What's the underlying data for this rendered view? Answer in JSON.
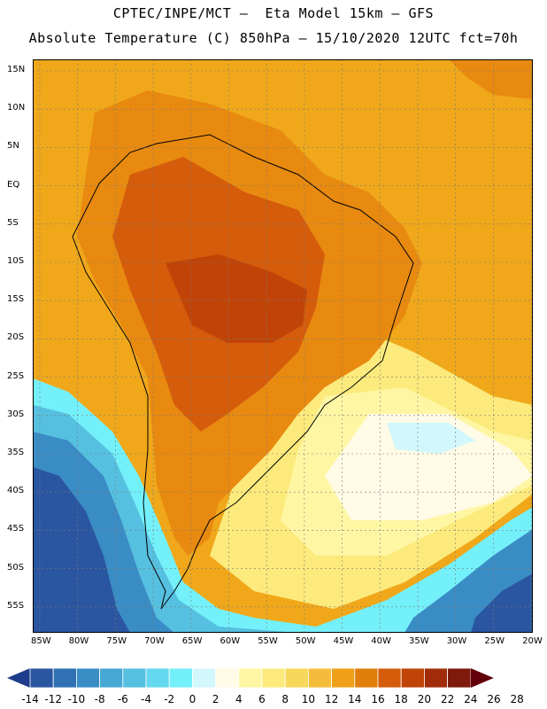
{
  "header": {
    "title_line1": "CPTEC/INPE/MCT –  Eta Model 15km – GFS",
    "title_line2": "Absolute Temperature (C) 850hPa – 15/10/2020 12UTC fct=70h"
  },
  "map": {
    "lat_labels": [
      "15N",
      "10N",
      "5N",
      "EQ",
      "5S",
      "10S",
      "15S",
      "20S",
      "25S",
      "30S",
      "35S",
      "40S",
      "45S",
      "50S",
      "55S"
    ],
    "lon_labels": [
      "85W",
      "80W",
      "75W",
      "70W",
      "65W",
      "60W",
      "55W",
      "50W",
      "45W",
      "40W",
      "35W",
      "30W",
      "25W",
      "20W"
    ]
  },
  "colorbar": {
    "colors": [
      "#1e3c8c",
      "#2a55a0",
      "#3070b4",
      "#3a8cc4",
      "#46a8d4",
      "#56c0e0",
      "#64d8ee",
      "#74f0fa",
      "#d2f7fc",
      "#fffbe6",
      "#fff6a4",
      "#fcea7c",
      "#f8d85a",
      "#f4bc3a",
      "#eea018",
      "#e07e0a",
      "#d45c0a",
      "#c04408",
      "#a02c0a",
      "#7e1a0c",
      "#62000a"
    ],
    "labels": [
      "-14",
      "-12",
      "-10",
      "-8",
      "-6",
      "-4",
      "-2",
      "0",
      "2",
      "4",
      "6",
      "8",
      "10",
      "12",
      "14",
      "16",
      "18",
      "20",
      "22",
      "24",
      "26",
      "28"
    ]
  }
}
